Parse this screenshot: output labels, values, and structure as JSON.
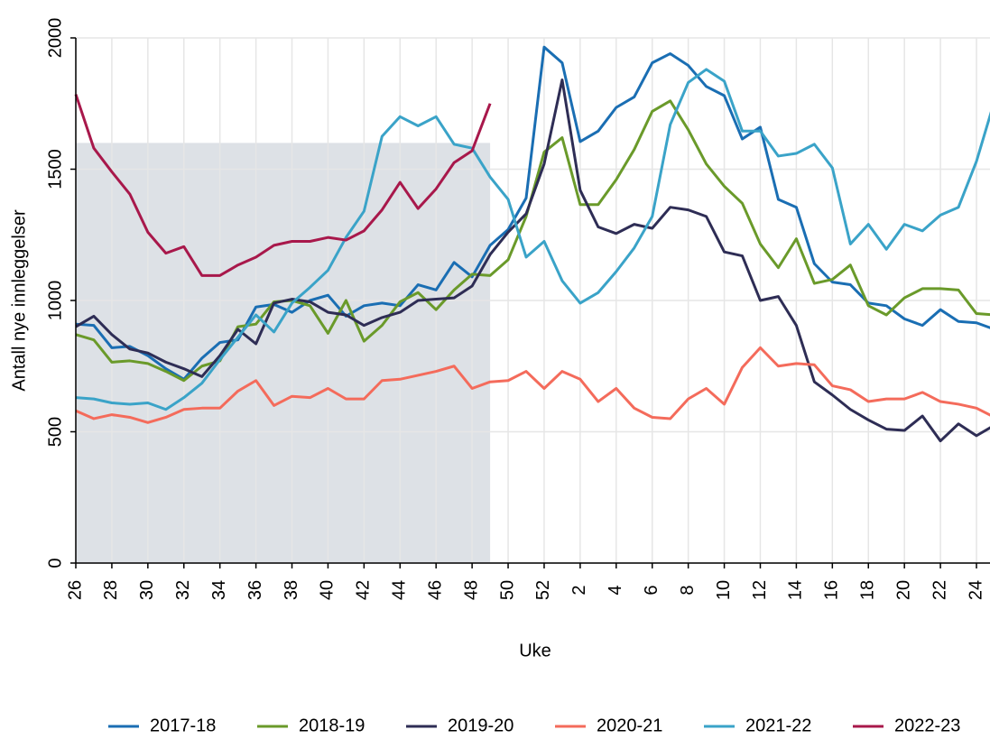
{
  "chart_data": {
    "type": "line",
    "y_label": "Antall nye innleggelser",
    "x_label": "Uke",
    "categories": [
      "26",
      null,
      "28",
      null,
      "30",
      null,
      "32",
      null,
      "34",
      null,
      "36",
      null,
      "38",
      null,
      "40",
      null,
      "42",
      null,
      "44",
      null,
      "46",
      null,
      "48",
      null,
      "50",
      null,
      "52",
      null,
      "2",
      null,
      "4",
      null,
      "6",
      null,
      "8",
      null,
      "10",
      null,
      "12",
      null,
      "14",
      null,
      "16",
      null,
      "18",
      null,
      "20",
      null,
      "22",
      null,
      "24",
      null
    ],
    "ylim": [
      0,
      2000
    ],
    "yticks": [
      0,
      500,
      1000,
      1500,
      2000
    ],
    "grid": true,
    "legend": "bottom",
    "shade": {
      "color": "#dde1e6",
      "from_index": 0,
      "to_index": 23,
      "top": 1600
    },
    "series": [
      {
        "name": "2017-18",
        "color": "#1a6eb3",
        "values": [
          910,
          905,
          820,
          825,
          790,
          740,
          700,
          780,
          840,
          850,
          975,
          985,
          955,
          1000,
          1020,
          940,
          980,
          990,
          980,
          1060,
          1040,
          1145,
          1090,
          1210,
          1270,
          1390,
          1965,
          1905,
          1605,
          1645,
          1735,
          1775,
          1905,
          1940,
          1895,
          1815,
          1780,
          1615,
          1660,
          1385,
          1355,
          1140,
          1070,
          1060,
          990,
          980,
          930,
          905,
          965,
          920,
          915,
          890
        ]
      },
      {
        "name": "2018-19",
        "color": "#6a9a2a",
        "values": [
          870,
          850,
          765,
          770,
          760,
          730,
          695,
          750,
          770,
          900,
          910,
          995,
          1000,
          980,
          875,
          1000,
          845,
          905,
          995,
          1030,
          965,
          1040,
          1100,
          1095,
          1155,
          1320,
          1565,
          1620,
          1365,
          1365,
          1460,
          1575,
          1720,
          1760,
          1650,
          1520,
          1435,
          1370,
          1215,
          1125,
          1235,
          1065,
          1080,
          1135,
          980,
          945,
          1010,
          1045,
          1045,
          1040,
          950,
          945
        ]
      },
      {
        "name": "2019-20",
        "color": "#2e2d55",
        "values": [
          900,
          940,
          870,
          815,
          800,
          765,
          740,
          710,
          790,
          890,
          835,
          990,
          1005,
          995,
          955,
          945,
          905,
          935,
          955,
          1000,
          1005,
          1010,
          1055,
          1175,
          1260,
          1330,
          1520,
          1840,
          1420,
          1280,
          1255,
          1290,
          1275,
          1355,
          1345,
          1320,
          1185,
          1170,
          1000,
          1015,
          905,
          690,
          640,
          585,
          545,
          510,
          505,
          560,
          465,
          530,
          485,
          525
        ]
      },
      {
        "name": "2020-21",
        "color": "#f46b5b",
        "values": [
          580,
          550,
          565,
          555,
          535,
          555,
          585,
          590,
          590,
          655,
          695,
          600,
          635,
          630,
          665,
          625,
          625,
          695,
          700,
          715,
          730,
          750,
          665,
          690,
          695,
          730,
          665,
          730,
          700,
          615,
          665,
          590,
          555,
          550,
          625,
          665,
          605,
          745,
          820,
          750,
          760,
          755,
          675,
          660,
          615,
          625,
          625,
          650,
          615,
          605,
          590,
          555
        ]
      },
      {
        "name": "2021-22",
        "color": "#3aa3c8",
        "values": [
          630,
          625,
          610,
          605,
          610,
          585,
          630,
          685,
          775,
          860,
          945,
          880,
          990,
          1050,
          1115,
          1240,
          1340,
          1625,
          1700,
          1665,
          1700,
          1595,
          1580,
          1470,
          1385,
          1165,
          1225,
          1075,
          990,
          1030,
          1110,
          1200,
          1320,
          1670,
          1830,
          1880,
          1835,
          1645,
          1645,
          1550,
          1560,
          1595,
          1505,
          1215,
          1290,
          1195,
          1290,
          1265,
          1325,
          1355,
          1530,
          1760
        ]
      },
      {
        "name": "2022-23",
        "color": "#a8184b",
        "values": [
          1785,
          1580,
          1490,
          1405,
          1260,
          1180,
          1205,
          1095,
          1095,
          1135,
          1165,
          1210,
          1225,
          1225,
          1240,
          1230,
          1265,
          1345,
          1450,
          1350,
          1425,
          1525,
          1570,
          1750,
          null,
          null,
          null,
          null,
          null,
          null,
          null,
          null,
          null,
          null,
          null,
          null,
          null,
          null,
          null,
          null,
          null,
          null,
          null,
          null,
          null,
          null,
          null,
          null,
          null,
          null,
          null,
          null
        ]
      }
    ]
  }
}
